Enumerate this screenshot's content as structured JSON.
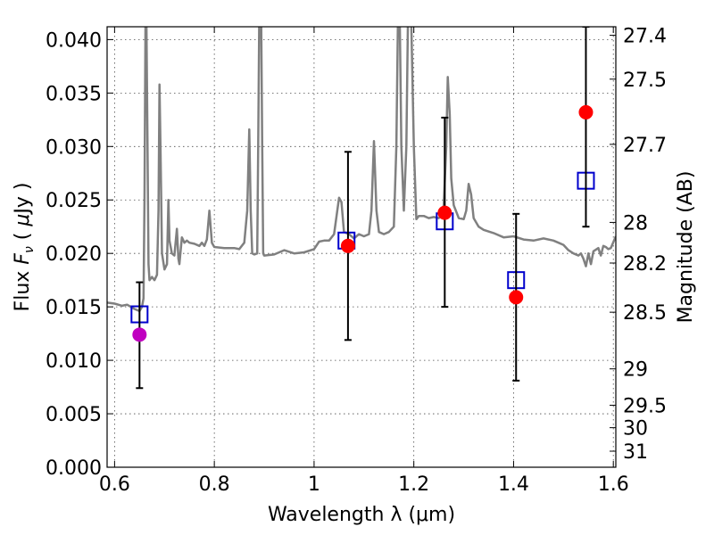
{
  "chart_data": {
    "type": "scatter",
    "xlabel": "Wavelength  λ (μm)",
    "ylabel": "Flux  F_ν  ( μJy )",
    "ylabel_right": "Magnitude (AB)",
    "xlim": [
      0.585,
      1.605
    ],
    "ylim": [
      0.0,
      0.0412
    ],
    "grid": true,
    "x_ticks": [
      0.6,
      0.8,
      1.0,
      1.2,
      1.4,
      1.6
    ],
    "x_tick_labels": [
      "0.6",
      "0.8",
      "1",
      "1.2",
      "1.4",
      "1.6"
    ],
    "y_ticks": [
      0.0,
      0.005,
      0.01,
      0.015,
      0.02,
      0.025,
      0.03,
      0.035,
      0.04
    ],
    "y_tick_labels": [
      "0.000",
      "0.005",
      "0.010",
      "0.015",
      "0.020",
      "0.025",
      "0.030",
      "0.035",
      "0.040"
    ],
    "mag_ticks": [
      {
        "flux": 0.0404,
        "label": "27.4"
      },
      {
        "flux": 0.0363,
        "label": "27.5"
      },
      {
        "flux": 0.0302,
        "label": "27.7"
      },
      {
        "flux": 0.0229,
        "label": "28"
      },
      {
        "flux": 0.0191,
        "label": "28.2"
      },
      {
        "flux": 0.0145,
        "label": "28.5"
      },
      {
        "flux": 0.0092,
        "label": "29"
      },
      {
        "flux": 0.0058,
        "label": "29.5"
      },
      {
        "flux": 0.0037,
        "label": "30"
      },
      {
        "flux": 0.0015,
        "label": "31"
      }
    ],
    "model_spectrum": {
      "name": "model",
      "color": "#808080",
      "points": [
        [
          0.585,
          0.0154
        ],
        [
          0.6,
          0.0153
        ],
        [
          0.615,
          0.0151
        ],
        [
          0.625,
          0.0152
        ],
        [
          0.64,
          0.0148
        ],
        [
          0.65,
          0.0146
        ],
        [
          0.655,
          0.015
        ],
        [
          0.658,
          0.0158
        ],
        [
          0.66,
          0.025
        ],
        [
          0.662,
          0.0413
        ],
        [
          0.664,
          0.0413
        ],
        [
          0.666,
          0.03
        ],
        [
          0.668,
          0.019
        ],
        [
          0.67,
          0.0175
        ],
        [
          0.675,
          0.0178
        ],
        [
          0.68,
          0.0175
        ],
        [
          0.685,
          0.018
        ],
        [
          0.688,
          0.024
        ],
        [
          0.69,
          0.0358
        ],
        [
          0.692,
          0.03
        ],
        [
          0.695,
          0.02
        ],
        [
          0.7,
          0.0185
        ],
        [
          0.705,
          0.019
        ],
        [
          0.708,
          0.025
        ],
        [
          0.71,
          0.0212
        ],
        [
          0.715,
          0.02
        ],
        [
          0.72,
          0.0198
        ],
        [
          0.725,
          0.0223
        ],
        [
          0.728,
          0.0195
        ],
        [
          0.73,
          0.019
        ],
        [
          0.735,
          0.0215
        ],
        [
          0.74,
          0.021
        ],
        [
          0.745,
          0.0212
        ],
        [
          0.75,
          0.021
        ],
        [
          0.76,
          0.0209
        ],
        [
          0.77,
          0.0207
        ],
        [
          0.775,
          0.021
        ],
        [
          0.78,
          0.0207
        ],
        [
          0.785,
          0.0213
        ],
        [
          0.79,
          0.024
        ],
        [
          0.795,
          0.021
        ],
        [
          0.8,
          0.0206
        ],
        [
          0.82,
          0.0205
        ],
        [
          0.84,
          0.0205
        ],
        [
          0.85,
          0.0204
        ],
        [
          0.86,
          0.021
        ],
        [
          0.866,
          0.024
        ],
        [
          0.87,
          0.0316
        ],
        [
          0.873,
          0.024
        ],
        [
          0.876,
          0.02
        ],
        [
          0.88,
          0.0199
        ],
        [
          0.886,
          0.02
        ],
        [
          0.888,
          0.03
        ],
        [
          0.89,
          0.0413
        ],
        [
          0.894,
          0.0413
        ],
        [
          0.896,
          0.03
        ],
        [
          0.898,
          0.02
        ],
        [
          0.9,
          0.0198
        ],
        [
          0.92,
          0.0199
        ],
        [
          0.94,
          0.0203
        ],
        [
          0.96,
          0.02
        ],
        [
          0.98,
          0.0201
        ],
        [
          1.0,
          0.0204
        ],
        [
          1.01,
          0.0211
        ],
        [
          1.02,
          0.0212
        ],
        [
          1.03,
          0.0212
        ],
        [
          1.04,
          0.0218
        ],
        [
          1.045,
          0.0235
        ],
        [
          1.05,
          0.0252
        ],
        [
          1.055,
          0.0248
        ],
        [
          1.06,
          0.022
        ],
        [
          1.07,
          0.0218
        ],
        [
          1.08,
          0.0214
        ],
        [
          1.09,
          0.0218
        ],
        [
          1.1,
          0.0216
        ],
        [
          1.11,
          0.0218
        ],
        [
          1.115,
          0.024
        ],
        [
          1.12,
          0.0305
        ],
        [
          1.125,
          0.024
        ],
        [
          1.13,
          0.022
        ],
        [
          1.14,
          0.0218
        ],
        [
          1.15,
          0.022
        ],
        [
          1.16,
          0.0225
        ],
        [
          1.165,
          0.03
        ],
        [
          1.168,
          0.0413
        ],
        [
          1.172,
          0.0413
        ],
        [
          1.175,
          0.03
        ],
        [
          1.18,
          0.024
        ],
        [
          1.185,
          0.03
        ],
        [
          1.188,
          0.0413
        ],
        [
          1.195,
          0.0413
        ],
        [
          1.2,
          0.03
        ],
        [
          1.205,
          0.0232
        ],
        [
          1.21,
          0.0235
        ],
        [
          1.22,
          0.0235
        ],
        [
          1.23,
          0.0233
        ],
        [
          1.24,
          0.0234
        ],
        [
          1.25,
          0.0233
        ],
        [
          1.255,
          0.0235
        ],
        [
          1.26,
          0.0245
        ],
        [
          1.265,
          0.03
        ],
        [
          1.268,
          0.0365
        ],
        [
          1.272,
          0.033
        ],
        [
          1.275,
          0.027
        ],
        [
          1.28,
          0.0245
        ],
        [
          1.29,
          0.0233
        ],
        [
          1.3,
          0.0232
        ],
        [
          1.305,
          0.024
        ],
        [
          1.31,
          0.0265
        ],
        [
          1.315,
          0.0255
        ],
        [
          1.32,
          0.0233
        ],
        [
          1.33,
          0.0225
        ],
        [
          1.34,
          0.0222
        ],
        [
          1.36,
          0.0219
        ],
        [
          1.38,
          0.0215
        ],
        [
          1.4,
          0.0216
        ],
        [
          1.42,
          0.0213
        ],
        [
          1.44,
          0.0212
        ],
        [
          1.46,
          0.0214
        ],
        [
          1.48,
          0.0212
        ],
        [
          1.49,
          0.021
        ],
        [
          1.5,
          0.0208
        ],
        [
          1.51,
          0.0203
        ],
        [
          1.52,
          0.02
        ],
        [
          1.53,
          0.0198
        ],
        [
          1.535,
          0.02
        ],
        [
          1.54,
          0.0195
        ],
        [
          1.545,
          0.0188
        ],
        [
          1.55,
          0.02
        ],
        [
          1.555,
          0.019
        ],
        [
          1.56,
          0.0202
        ],
        [
          1.57,
          0.0205
        ],
        [
          1.575,
          0.0198
        ],
        [
          1.58,
          0.0207
        ],
        [
          1.585,
          0.0206
        ],
        [
          1.59,
          0.0204
        ],
        [
          1.595,
          0.0205
        ],
        [
          1.605,
          0.0216
        ]
      ]
    },
    "observed_points": [
      {
        "x": 0.65,
        "y": 0.0124,
        "err_low": 0.0074,
        "err_high": 0.0173,
        "color": "#c000c0"
      },
      {
        "x": 1.068,
        "y": 0.0207,
        "err_low": 0.0119,
        "err_high": 0.0295,
        "color": "#ff0000"
      },
      {
        "x": 1.262,
        "y": 0.0238,
        "err_low": 0.015,
        "err_high": 0.0327,
        "color": "#ff0000"
      },
      {
        "x": 1.405,
        "y": 0.0159,
        "err_low": 0.0081,
        "err_high": 0.0237,
        "color": "#ff0000"
      },
      {
        "x": 1.545,
        "y": 0.0332,
        "err_low": 0.0225,
        "err_high": 0.0412,
        "color": "#ff0000"
      }
    ],
    "model_points": [
      {
        "x": 0.65,
        "y": 0.0143
      },
      {
        "x": 1.065,
        "y": 0.0212
      },
      {
        "x": 1.262,
        "y": 0.023
      },
      {
        "x": 1.405,
        "y": 0.0175
      },
      {
        "x": 1.545,
        "y": 0.0268
      }
    ],
    "model_point_color": "#0000cc"
  }
}
